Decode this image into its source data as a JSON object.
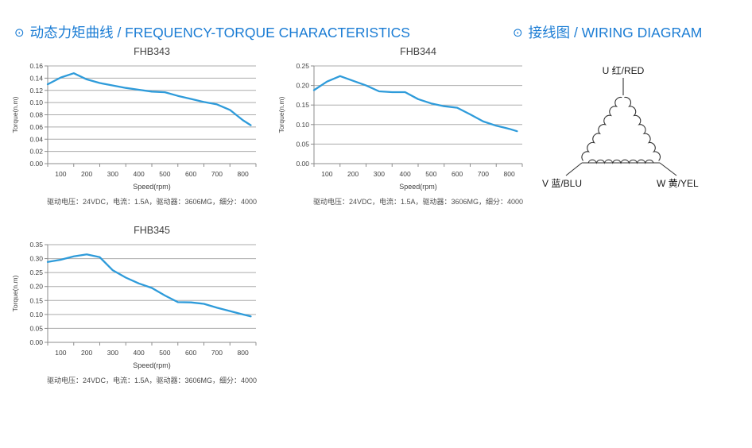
{
  "headers": {
    "torque_section": {
      "bullet": "⊙",
      "text": "动态力矩曲线 / FREQUENCY-TORQUE CHARACTERISTICS"
    },
    "wiring_section": {
      "bullet": "⊙",
      "text": "接线图 / WIRING DIAGRAM"
    },
    "accent_color": "#1a7cd4"
  },
  "chart_data": [
    {
      "type": "line",
      "title": "FHB343",
      "xlabel": "Speed(rpm)",
      "ylabel": "Torque(n.m)",
      "caption": "驱动电压：24VDC，电流：1.5A，驱动器：3606MG，细分：4000",
      "x_range": [
        50,
        850
      ],
      "x_ticks": [
        100,
        200,
        300,
        400,
        500,
        600,
        700,
        800
      ],
      "ylim": [
        0,
        0.16
      ],
      "y_step": 0.02,
      "grid": true,
      "x": [
        50,
        100,
        150,
        200,
        250,
        300,
        350,
        400,
        450,
        500,
        550,
        600,
        650,
        700,
        750,
        800,
        830
      ],
      "values": [
        0.13,
        0.141,
        0.148,
        0.138,
        0.132,
        0.128,
        0.124,
        0.121,
        0.118,
        0.117,
        0.111,
        0.106,
        0.101,
        0.097,
        0.088,
        0.071,
        0.063
      ]
    },
    {
      "type": "line",
      "title": "FHB344",
      "xlabel": "Speed(rpm)",
      "ylabel": "Torque(n.m)",
      "caption": "驱动电压：24VDC，电流：1.5A，驱动器：3606MG，细分：4000",
      "x_range": [
        50,
        850
      ],
      "x_ticks": [
        100,
        200,
        300,
        400,
        500,
        600,
        700,
        800
      ],
      "ylim": [
        0,
        0.25
      ],
      "y_step": 0.05,
      "grid": true,
      "x": [
        50,
        100,
        150,
        200,
        250,
        300,
        350,
        400,
        450,
        500,
        550,
        600,
        650,
        700,
        750,
        800,
        830
      ],
      "values": [
        0.188,
        0.21,
        0.224,
        0.212,
        0.2,
        0.185,
        0.183,
        0.183,
        0.165,
        0.154,
        0.147,
        0.143,
        0.126,
        0.108,
        0.097,
        0.089,
        0.083
      ]
    },
    {
      "type": "line",
      "title": "FHB345",
      "xlabel": "Speed(rpm)",
      "ylabel": "Torque(n.m)",
      "caption": "驱动电压：24VDC，电流：1.5A，驱动器：3606MG，细分：4000",
      "x_range": [
        50,
        850
      ],
      "x_ticks": [
        100,
        200,
        300,
        400,
        500,
        600,
        700,
        800
      ],
      "ylim": [
        0,
        0.35
      ],
      "y_step": 0.05,
      "grid": true,
      "x": [
        50,
        100,
        150,
        200,
        250,
        300,
        350,
        400,
        450,
        500,
        550,
        600,
        650,
        700,
        750,
        800,
        830
      ],
      "values": [
        0.288,
        0.296,
        0.308,
        0.315,
        0.305,
        0.258,
        0.232,
        0.211,
        0.195,
        0.168,
        0.144,
        0.143,
        0.138,
        0.124,
        0.112,
        0.1,
        0.093
      ]
    }
  ],
  "chart_style": {
    "line_color": "#2e9bda",
    "grid_color": "#ababab",
    "axis_color": "#8c8c8c",
    "tick_text_color": "#404040"
  },
  "wiring": {
    "u_label": "U 红/RED",
    "v_label": "V 蓝/BLU",
    "w_label": "W 黄/YEL",
    "stroke_color": "#333333"
  }
}
